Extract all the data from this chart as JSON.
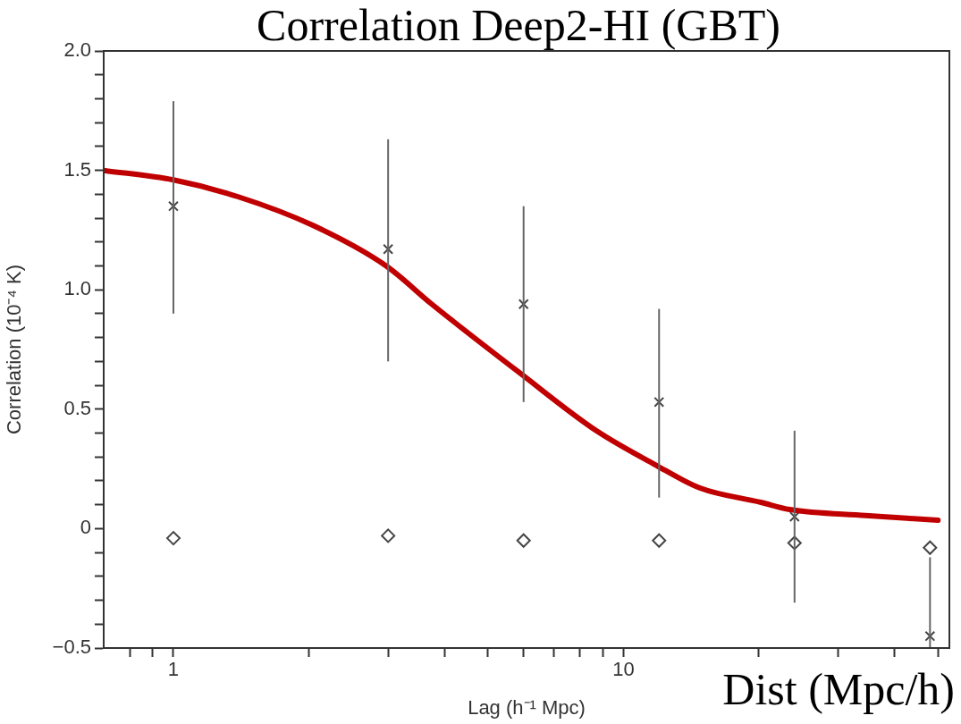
{
  "chart_data": {
    "type": "scatter",
    "title": "Correlation Deep2-HI (GBT)",
    "xlabel": "Lag (h⁻¹ Mpc)",
    "ylabel": "Correlation (10⁻⁴ K)",
    "annotations": [
      "Dist (Mpc/h)"
    ],
    "log": "x",
    "grid": false,
    "legend": false,
    "xlim": [
      0.7,
      53
    ],
    "xticks": [
      {
        "value": 0.8,
        "label": null
      },
      {
        "value": 0.9,
        "label": null
      },
      1,
      {
        "value": 2,
        "label": null
      },
      {
        "value": 3,
        "label": null
      },
      {
        "value": 4,
        "label": null
      },
      {
        "value": 5,
        "label": null
      },
      {
        "value": 6,
        "label": null
      },
      {
        "value": 7,
        "label": null
      },
      {
        "value": 8,
        "label": null
      },
      {
        "value": 9,
        "label": null
      },
      10,
      {
        "value": 20,
        "label": null
      },
      {
        "value": 30,
        "label": null
      },
      {
        "value": 40,
        "label": null
      },
      {
        "value": 50,
        "label": null
      }
    ],
    "ylim": [
      -0.5,
      2
    ],
    "yticks": [
      -0.5,
      {
        "value": -0.4,
        "label": null
      },
      {
        "value": -0.3,
        "label": null
      },
      {
        "value": -0.2,
        "label": null
      },
      {
        "value": -0.1,
        "label": null
      },
      0,
      {
        "value": 0.1,
        "label": null
      },
      {
        "value": 0.2,
        "label": null
      },
      {
        "value": 0.3,
        "label": null
      },
      {
        "value": 0.4,
        "label": null
      },
      0.5,
      {
        "value": 0.6,
        "label": null
      },
      {
        "value": 0.7,
        "label": null
      },
      {
        "value": 0.8,
        "label": null
      },
      {
        "value": 0.9,
        "label": null
      },
      {
        "value": 1,
        "label": "1.0"
      },
      {
        "value": 1.1,
        "label": null
      },
      {
        "value": 1.2,
        "label": null
      },
      {
        "value": 1.3,
        "label": null
      },
      {
        "value": 1.4,
        "label": null
      },
      1.5,
      {
        "value": 1.6,
        "label": null
      },
      {
        "value": 1.7,
        "label": null
      },
      {
        "value": 1.8,
        "label": null
      },
      {
        "value": 1.9,
        "label": null
      },
      {
        "value": 2,
        "label": "2.0"
      }
    ],
    "series": [
      {
        "type": "line",
        "color": "#c00000",
        "marker": "none",
        "line_style": "solid",
        "x": [
          0.7,
          1,
          1.39,
          2.04,
          2.97,
          3.75,
          5.9,
          8.7,
          11.7,
          14.8,
          20.2,
          23.4,
          34.5,
          50
        ],
        "values": [
          1.5,
          1.46,
          1.39,
          1.27,
          1.1,
          0.94,
          0.65,
          0.41,
          0.27,
          0.17,
          0.11,
          0.08,
          0.055,
          0.035
        ]
      },
      {
        "type": "scatter",
        "color": "#444444",
        "marker": "cross",
        "x": [
          1,
          3,
          6,
          12,
          24,
          48
        ],
        "values": [
          1.35,
          1.17,
          0.94,
          0.53,
          0.05,
          -0.45
        ],
        "errors": [
          [
            0.9,
            1.79
          ],
          [
            0.7,
            1.63
          ],
          [
            0.53,
            1.35
          ],
          [
            0.13,
            0.92
          ],
          [
            -0.31,
            0.41
          ],
          [
            -0.5,
            -0.12
          ]
        ]
      },
      {
        "type": "scatter",
        "color": "#444444",
        "marker": "diamond",
        "x": [
          1,
          3,
          6,
          12,
          24,
          48
        ],
        "values": [
          -0.04,
          -0.03,
          -0.05,
          -0.05,
          -0.06,
          -0.08
        ]
      }
    ]
  }
}
